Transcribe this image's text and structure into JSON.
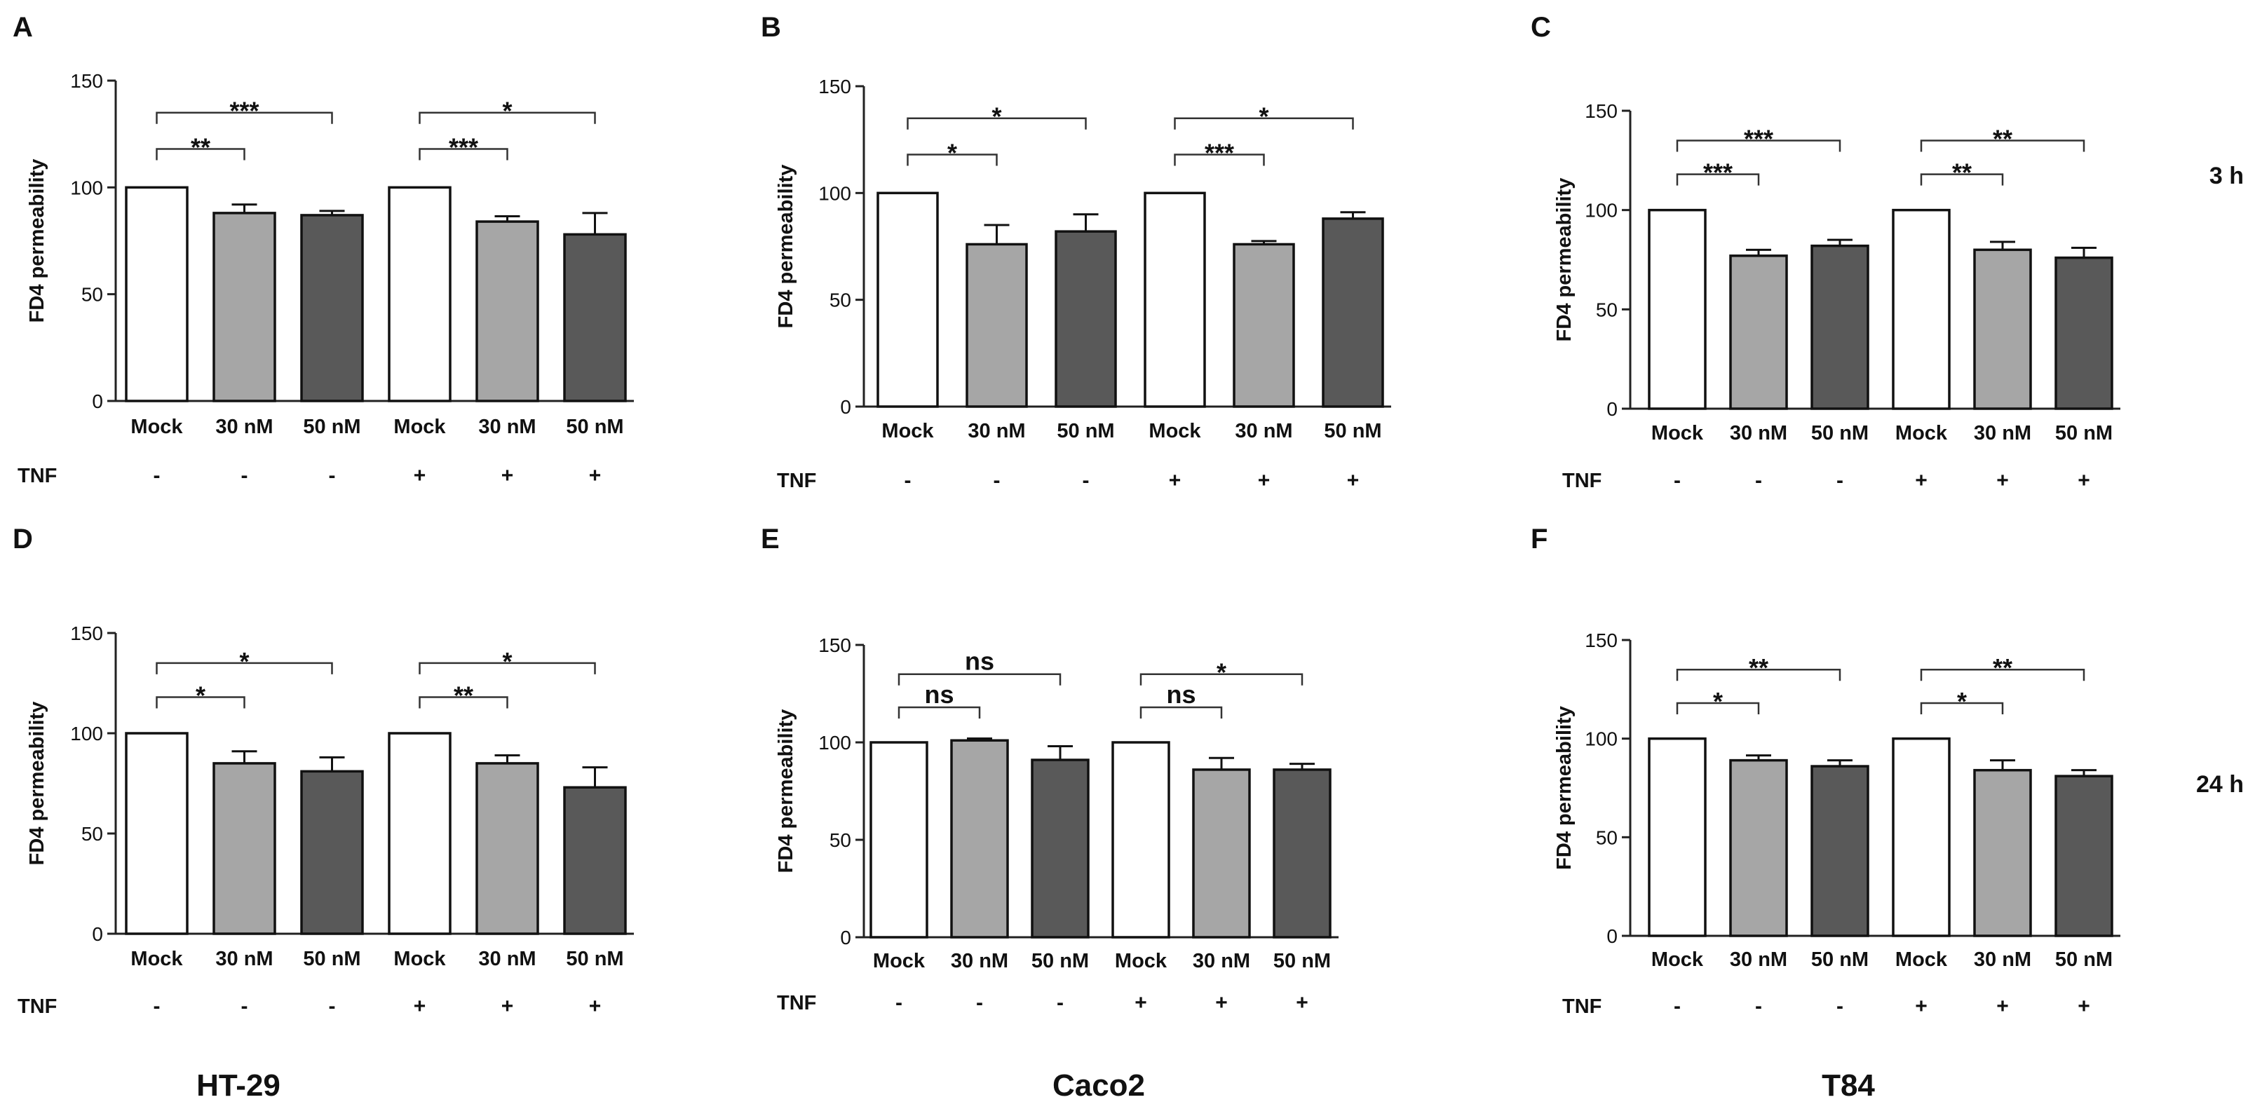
{
  "chart_data": [
    {
      "id": "A",
      "type": "bar",
      "panel": "A",
      "cell_line": "HT-29",
      "time": "3 h",
      "ylabel": "FD4 permeability",
      "ylim": [
        0,
        150
      ],
      "yticks": [
        0,
        50,
        100,
        150
      ],
      "categories": [
        "Mock",
        "30 nM",
        "50 nM",
        "Mock",
        "30 nM",
        "50 nM"
      ],
      "tnf_label": "TNF",
      "tnf": [
        "-",
        "-",
        "-",
        "+",
        "+",
        "+"
      ],
      "values": [
        100,
        88,
        87,
        100,
        84,
        78
      ],
      "errors": [
        0,
        4,
        2,
        0,
        2.5,
        10
      ],
      "colors": [
        "#ffffff",
        "#a6a6a6",
        "#595959",
        "#ffffff",
        "#a6a6a6",
        "#595959"
      ],
      "significance": [
        {
          "from": 0,
          "to": 1,
          "label": "**"
        },
        {
          "from": 0,
          "to": 2,
          "label": "***"
        },
        {
          "from": 3,
          "to": 4,
          "label": "***"
        },
        {
          "from": 3,
          "to": 5,
          "label": "*"
        }
      ]
    },
    {
      "id": "B",
      "type": "bar",
      "panel": "B",
      "cell_line": "Caco2",
      "time": "3 h",
      "ylabel": "FD4 permeability",
      "ylim": [
        0,
        150
      ],
      "yticks": [
        0,
        50,
        100,
        150
      ],
      "categories": [
        "Mock",
        "30 nM",
        "50 nM",
        "Mock",
        "30 nM",
        "50 nM"
      ],
      "tnf_label": "TNF",
      "tnf": [
        "-",
        "-",
        "-",
        "+",
        "+",
        "+"
      ],
      "values": [
        100,
        76,
        82,
        100,
        76,
        88
      ],
      "errors": [
        0,
        9,
        8,
        0,
        1.5,
        3
      ],
      "colors": [
        "#ffffff",
        "#a6a6a6",
        "#595959",
        "#ffffff",
        "#a6a6a6",
        "#595959"
      ],
      "significance": [
        {
          "from": 0,
          "to": 1,
          "label": "*"
        },
        {
          "from": 0,
          "to": 2,
          "label": "*"
        },
        {
          "from": 3,
          "to": 4,
          "label": "***"
        },
        {
          "from": 3,
          "to": 5,
          "label": "*"
        }
      ]
    },
    {
      "id": "C",
      "type": "bar",
      "panel": "C",
      "cell_line": "T84",
      "time": "3 h",
      "ylabel": "FD4 permeability",
      "ylim": [
        0,
        150
      ],
      "yticks": [
        0,
        50,
        100,
        150
      ],
      "categories": [
        "Mock",
        "30 nM",
        "50 nM",
        "Mock",
        "30 nM",
        "50 nM"
      ],
      "tnf_label": "TNF",
      "tnf": [
        "-",
        "-",
        "-",
        "+",
        "+",
        "+"
      ],
      "values": [
        100,
        77,
        82,
        100,
        80,
        76
      ],
      "errors": [
        0,
        3,
        3,
        0,
        4,
        5
      ],
      "colors": [
        "#ffffff",
        "#a6a6a6",
        "#595959",
        "#ffffff",
        "#a6a6a6",
        "#595959"
      ],
      "significance": [
        {
          "from": 0,
          "to": 1,
          "label": "***"
        },
        {
          "from": 0,
          "to": 2,
          "label": "***"
        },
        {
          "from": 3,
          "to": 4,
          "label": "**"
        },
        {
          "from": 3,
          "to": 5,
          "label": "**"
        }
      ]
    },
    {
      "id": "D",
      "type": "bar",
      "panel": "D",
      "cell_line": "HT-29",
      "time": "24 h",
      "ylabel": "FD4 permeability",
      "ylim": [
        0,
        150
      ],
      "yticks": [
        0,
        50,
        100,
        150
      ],
      "categories": [
        "Mock",
        "30 nM",
        "50 nM",
        "Mock",
        "30 nM",
        "50 nM"
      ],
      "tnf_label": "TNF",
      "tnf": [
        "-",
        "-",
        "-",
        "+",
        "+",
        "+"
      ],
      "values": [
        100,
        85,
        81,
        100,
        85,
        73
      ],
      "errors": [
        0,
        6,
        7,
        0,
        4,
        10
      ],
      "colors": [
        "#ffffff",
        "#a6a6a6",
        "#595959",
        "#ffffff",
        "#a6a6a6",
        "#595959"
      ],
      "significance": [
        {
          "from": 0,
          "to": 1,
          "label": "*"
        },
        {
          "from": 0,
          "to": 2,
          "label": "*"
        },
        {
          "from": 3,
          "to": 4,
          "label": "**"
        },
        {
          "from": 3,
          "to": 5,
          "label": "*"
        }
      ]
    },
    {
      "id": "E",
      "type": "bar",
      "panel": "E",
      "cell_line": "Caco2",
      "time": "24 h",
      "ylabel": "FD4 permeability",
      "ylim": [
        0,
        150
      ],
      "yticks": [
        0,
        50,
        100,
        150
      ],
      "categories": [
        "Mock",
        "30 nM",
        "50 nM",
        "Mock",
        "30 nM",
        "50 nM"
      ],
      "tnf_label": "TNF",
      "tnf": [
        "-",
        "-",
        "-",
        "+",
        "+",
        "+"
      ],
      "values": [
        100,
        101,
        91,
        100,
        86,
        86
      ],
      "errors": [
        0,
        1,
        7,
        0,
        6,
        3
      ],
      "colors": [
        "#ffffff",
        "#a6a6a6",
        "#595959",
        "#ffffff",
        "#a6a6a6",
        "#595959"
      ],
      "significance": [
        {
          "from": 0,
          "to": 1,
          "label": "ns"
        },
        {
          "from": 0,
          "to": 2,
          "label": "ns"
        },
        {
          "from": 3,
          "to": 4,
          "label": "ns"
        },
        {
          "from": 3,
          "to": 5,
          "label": "*"
        }
      ]
    },
    {
      "id": "F",
      "type": "bar",
      "panel": "F",
      "cell_line": "T84",
      "time": "24 h",
      "ylabel": "FD4 permeability",
      "ylim": [
        0,
        150
      ],
      "yticks": [
        0,
        50,
        100,
        150
      ],
      "categories": [
        "Mock",
        "30 nM",
        "50 nM",
        "Mock",
        "30 nM",
        "50 nM"
      ],
      "tnf_label": "TNF",
      "tnf": [
        "-",
        "-",
        "-",
        "+",
        "+",
        "+"
      ],
      "values": [
        100,
        89,
        86,
        100,
        84,
        81
      ],
      "errors": [
        0,
        2.5,
        3,
        0,
        5,
        3
      ],
      "colors": [
        "#ffffff",
        "#a6a6a6",
        "#595959",
        "#ffffff",
        "#a6a6a6",
        "#595959"
      ],
      "significance": [
        {
          "from": 0,
          "to": 1,
          "label": "*"
        },
        {
          "from": 0,
          "to": 2,
          "label": "**"
        },
        {
          "from": 3,
          "to": 4,
          "label": "*"
        },
        {
          "from": 3,
          "to": 5,
          "label": "**"
        }
      ]
    }
  ],
  "row_labels": [
    "3 h",
    "24 h"
  ],
  "column_labels": [
    "HT-29",
    "Caco2",
    "T84"
  ]
}
